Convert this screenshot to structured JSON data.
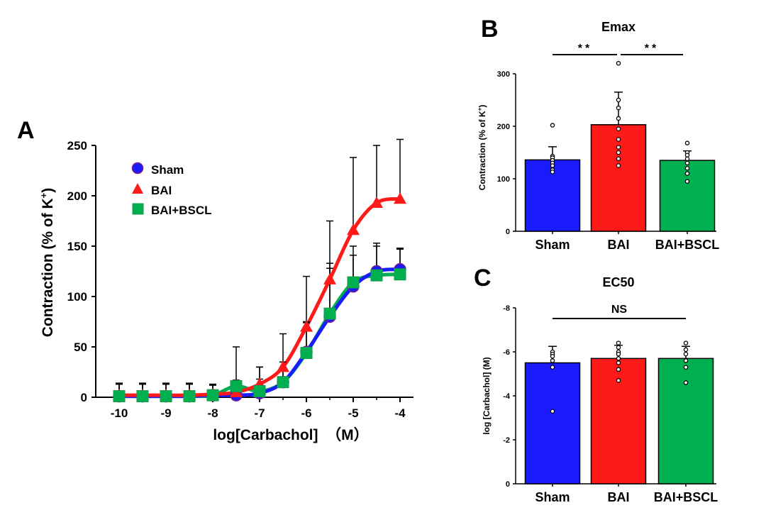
{
  "colors": {
    "sham": "#1a1aff",
    "bai": "#ff1a1a",
    "baibscl": "#00b050",
    "sham_outline": "#7a1f8a"
  },
  "panelA": {
    "letter": "A",
    "xlabel": "log[Carbachol]  （M）",
    "ylabel_main": "Contraction (% of K",
    "ylabel_sup": "+",
    "ylabel_close": ")",
    "xticks": [
      "-10",
      "-9",
      "-8",
      "-7",
      "-6",
      "-5",
      "-4"
    ],
    "yticks": [
      "0",
      "50",
      "100",
      "150",
      "200",
      "250"
    ]
  },
  "panelB": {
    "letter": "B",
    "title": "Emax",
    "ylabel_main": "Contraction (% of K",
    "ylabel_sup": "+",
    "ylabel_close": ")",
    "yticks": [
      "0",
      "100",
      "200",
      "300"
    ],
    "sig_left": "**",
    "sig_right": "**"
  },
  "panelC": {
    "letter": "C",
    "title": "EC50",
    "ylabel": "log [Carbachol] (M)",
    "yticks": [
      "0",
      "-2",
      "-4",
      "-6",
      "-8"
    ],
    "sig": "NS"
  },
  "chart_data": [
    {
      "type": "line",
      "panel": "A",
      "xlabel": "log[Carbachol]（M）",
      "ylabel": "Contraction (% of K+)",
      "xlim": [
        -10.2,
        -3.8
      ],
      "ylim": [
        0,
        250
      ],
      "legend_position": "top-left",
      "series": [
        {
          "name": "Sham",
          "marker": "circle",
          "x": [
            -10,
            -9.5,
            -9,
            -8.5,
            -8,
            -7.5,
            -7,
            -6.5,
            -6,
            -5.5,
            -5,
            -4.5,
            -4
          ],
          "y": [
            1,
            1,
            1,
            1,
            2,
            2,
            4,
            15,
            45,
            80,
            110,
            125,
            127
          ],
          "err": [
            12,
            12,
            12,
            12,
            10,
            12,
            14,
            20,
            30,
            48,
            40,
            25,
            20
          ]
        },
        {
          "name": "BAI",
          "marker": "triangle",
          "x": [
            -10,
            -9.5,
            -9,
            -8.5,
            -8,
            -7.5,
            -7,
            -6.5,
            -6,
            -5.5,
            -5,
            -4.5,
            -4
          ],
          "y": [
            2,
            2,
            2,
            2,
            3,
            5,
            13,
            30,
            70,
            117,
            166,
            193,
            197
          ],
          "err": [
            12,
            12,
            12,
            12,
            10,
            12,
            17,
            33,
            50,
            58,
            72,
            57,
            59
          ]
        },
        {
          "name": "BAI+BSCL",
          "marker": "square",
          "x": [
            -10,
            -9.5,
            -9,
            -8.5,
            -8,
            -7.5,
            -7,
            -6.5,
            -6,
            -5.5,
            -5,
            -4.5,
            -4
          ],
          "y": [
            1,
            1,
            1,
            1,
            2,
            11,
            6,
            15,
            44,
            83,
            114,
            121,
            122
          ],
          "err": [
            12,
            12,
            12,
            12,
            10,
            39,
            24,
            20,
            30,
            50,
            27,
            32,
            26
          ]
        }
      ]
    },
    {
      "type": "bar",
      "panel": "B",
      "title": "Emax",
      "ylabel": "Contraction (% of K+)",
      "ylim": [
        0,
        300
      ],
      "categories": [
        "Sham",
        "BAI",
        "BAI+BSCL"
      ],
      "values": [
        136,
        203,
        135
      ],
      "errors": [
        25,
        62,
        18
      ],
      "points": [
        [
          202,
          143,
          140,
          135,
          130,
          125,
          117,
          113
        ],
        [
          320,
          250,
          235,
          215,
          195,
          175,
          160,
          150,
          138,
          125
        ],
        [
          168,
          150,
          145,
          138,
          130,
          120,
          110,
          95
        ]
      ],
      "significance": [
        [
          "Sham",
          "BAI",
          "**"
        ],
        [
          "BAI",
          "BAI+BSCL",
          "**"
        ]
      ]
    },
    {
      "type": "bar",
      "panel": "C",
      "title": "EC50",
      "ylabel": "log [Carbachol] (M)",
      "ylim": [
        0,
        -8
      ],
      "categories": [
        "Sham",
        "BAI",
        "BAI+BSCL"
      ],
      "values": [
        -5.5,
        -5.7,
        -5.7
      ],
      "errors": [
        0.75,
        0.6,
        0.55
      ],
      "points": [
        [
          -6.0,
          -5.9,
          -5.8,
          -5.6,
          -5.3,
          -3.3
        ],
        [
          -6.4,
          -6.2,
          -6.0,
          -5.9,
          -5.7,
          -5.5,
          -5.2,
          -4.7
        ],
        [
          -6.4,
          -6.1,
          -5.9,
          -5.6,
          -5.3,
          -4.6
        ]
      ],
      "significance": [
        [
          "Sham",
          "BAI+BSCL",
          "NS"
        ]
      ]
    }
  ]
}
